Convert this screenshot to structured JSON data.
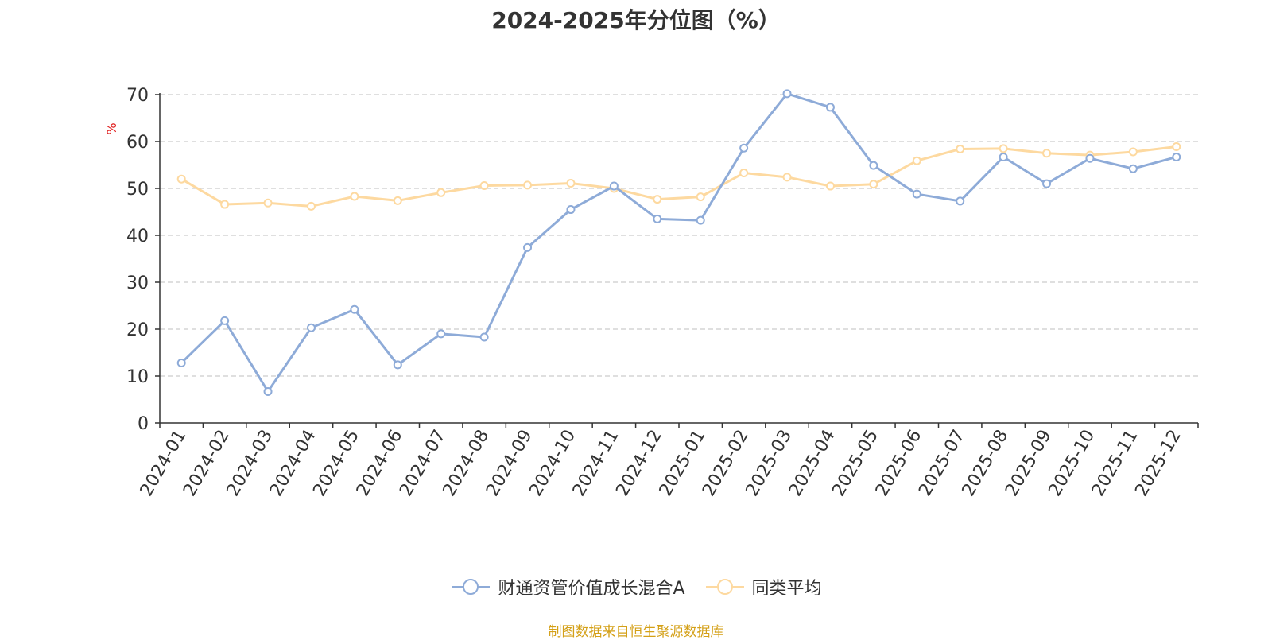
{
  "chart_data": {
    "type": "line",
    "title": "2024-2025年分位图（%）",
    "ylabel": "%",
    "xlabel": "",
    "ylim": [
      0,
      70
    ],
    "yticks": [
      0,
      10,
      20,
      30,
      40,
      50,
      60,
      70
    ],
    "grid": true,
    "legend_position": "bottom-center",
    "categories": [
      "2024-01",
      "2024-02",
      "2024-03",
      "2024-04",
      "2024-05",
      "2024-06",
      "2024-07",
      "2024-08",
      "2024-09",
      "2024-10",
      "2024-11",
      "2024-12",
      "2025-01",
      "2025-02",
      "2025-03",
      "2025-04",
      "2025-05",
      "2025-06",
      "2025-07",
      "2025-08",
      "2025-09",
      "2025-10",
      "2025-11",
      "2025-12"
    ],
    "series": [
      {
        "name": "财通资管价值成长混合A",
        "color": "#8eabd8",
        "values": [
          12.8,
          21.8,
          6.7,
          20.3,
          24.2,
          12.4,
          19.0,
          18.3,
          37.4,
          45.5,
          50.5,
          43.5,
          43.2,
          58.6,
          70.2,
          67.3,
          54.9,
          48.8,
          47.3,
          56.7,
          51.0,
          56.4,
          54.2,
          56.7
        ]
      },
      {
        "name": "同类平均",
        "color": "#fdd9a0",
        "values": [
          52.0,
          46.6,
          46.9,
          46.2,
          48.3,
          47.4,
          49.1,
          50.6,
          50.7,
          51.1,
          50.0,
          47.7,
          48.2,
          53.3,
          52.4,
          50.5,
          50.9,
          55.9,
          58.4,
          58.5,
          57.5,
          57.1,
          57.8,
          58.9
        ]
      }
    ]
  },
  "source_note": "制图数据来自恒生聚源数据库",
  "colors": {
    "source_note": "#d4a017",
    "ylabel": "#e02020",
    "grid": "#cccccc",
    "axis": "#333333",
    "text": "#333333"
  }
}
